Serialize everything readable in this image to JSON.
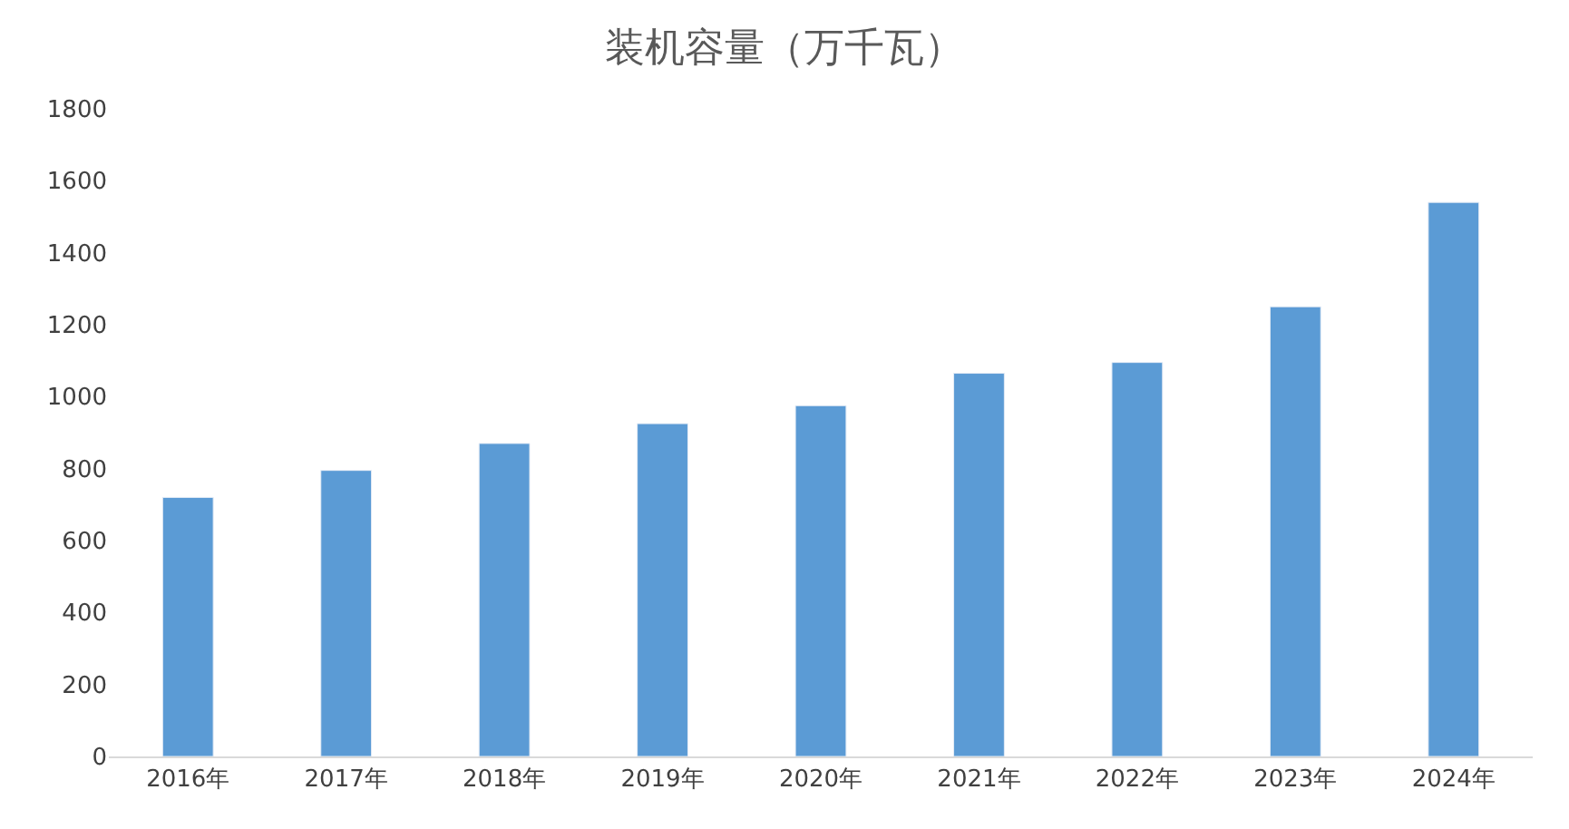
{
  "chart_data": {
    "type": "bar",
    "title": "装机容量（万千瓦）",
    "categories": [
      "2016年",
      "2017年",
      "2018年",
      "2019年",
      "2020年",
      "2021年",
      "2022年",
      "2023年",
      "2024年"
    ],
    "values": [
      720,
      795,
      870,
      925,
      975,
      1065,
      1095,
      1250,
      1540
    ],
    "color": "#5b9bd5",
    "ylim": [
      0,
      1800
    ],
    "yticks": [
      0,
      200,
      400,
      600,
      800,
      1000,
      1200,
      1400,
      1600,
      1800
    ],
    "legend": false
  }
}
